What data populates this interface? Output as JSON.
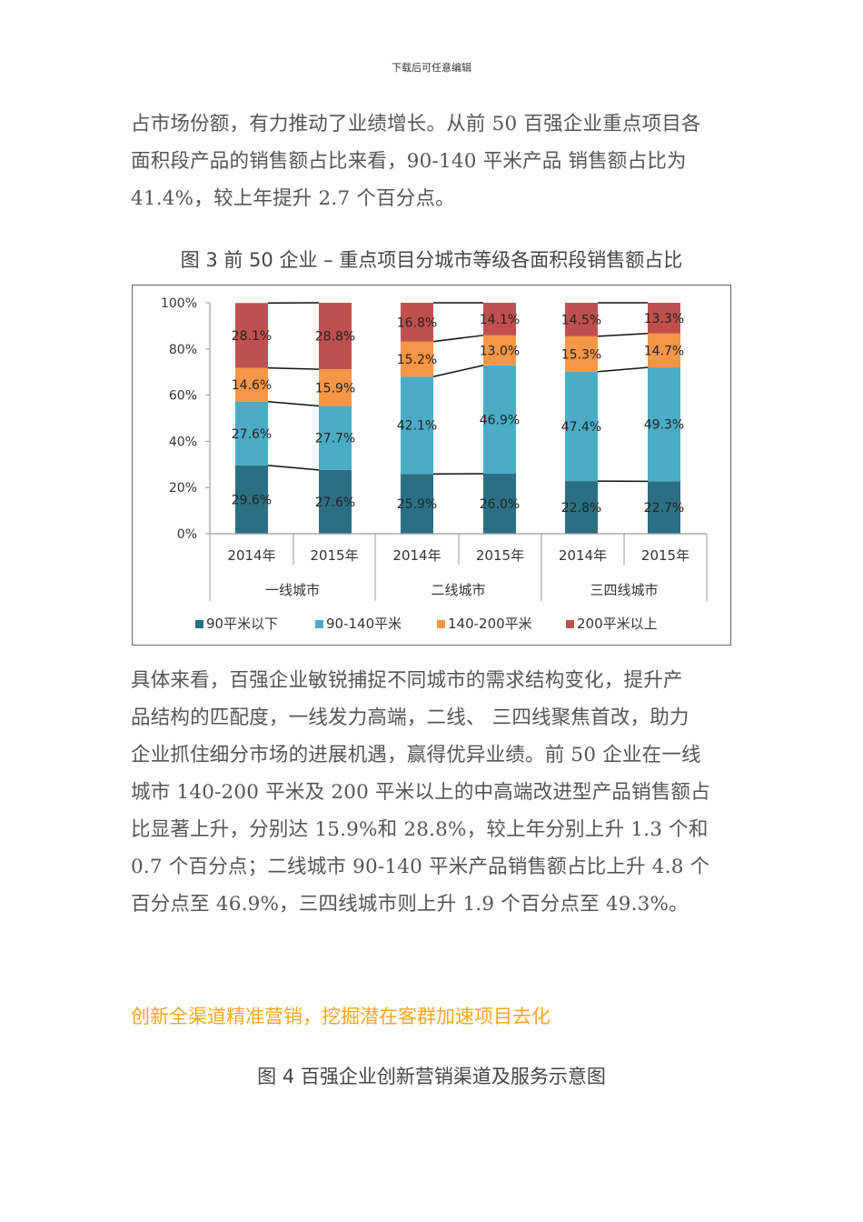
{
  "header": {
    "note": "下载后可任意编辑"
  },
  "paragraph1": {
    "lines": [
      "占市场份额，有力推动了业绩增长。从前 50 百强企业重点项目各",
      "面积段产品的销售额占比来看，90-140 平米产品  销售额占比为",
      "41.4%，较上年提升 2.7 个百分点。"
    ]
  },
  "figure3": {
    "title": "图 3  前 50 企业 – 重点项目分城市等级各面积段销售额占比"
  },
  "chart_data": {
    "type": "bar",
    "stacked": true,
    "percent": true,
    "title": "图3 前50企业 – 重点项目分城市等级各面积段销售额占比",
    "xlabel": "",
    "ylabel": "",
    "ylim": [
      0,
      100
    ],
    "yticks": [
      "0%",
      "20%",
      "40%",
      "60%",
      "80%",
      "100%"
    ],
    "categories": [
      "2014年",
      "2015年",
      "2014年",
      "2015年",
      "2014年",
      "2015年"
    ],
    "groups": [
      {
        "label": "一线城市",
        "categories": [
          "2014年",
          "2015年"
        ]
      },
      {
        "label": "二线城市",
        "categories": [
          "2014年",
          "2015年"
        ]
      },
      {
        "label": "三四线城市",
        "categories": [
          "2014年",
          "2015年"
        ]
      }
    ],
    "series": [
      {
        "name": "90平米以下",
        "color": "#2a6f84",
        "values": [
          29.6,
          27.6,
          25.9,
          26.0,
          22.8,
          22.7
        ]
      },
      {
        "name": "90-140平米",
        "color": "#4bacc6",
        "values": [
          27.6,
          27.7,
          42.1,
          46.9,
          47.4,
          49.3
        ]
      },
      {
        "name": "140-200平米",
        "color": "#f79646",
        "values": [
          14.6,
          15.9,
          15.2,
          13.0,
          15.3,
          14.7
        ]
      },
      {
        "name": "200平米以上",
        "color": "#c0504d",
        "values": [
          28.1,
          28.8,
          16.8,
          14.1,
          14.5,
          13.3
        ]
      }
    ],
    "legend_position": "bottom",
    "grid": false,
    "series_lines": true
  },
  "paragraph2": {
    "lines": [
      "具体来看，百强企业敏锐捕捉不同城市的需求结构变化，提升产",
      "品结构的匹配度，一线发力高端，二线、 三四线聚焦首改，助力",
      "企业抓住细分市场的进展机遇，赢得优异业绩。前 50 企业在一线",
      "城市 140-200 平米及 200 平米以上的中高端改进型产品销售额占",
      "比显著上升，分别达 15.9%和 28.8%，较上年分别上升 1.3 个和",
      "0.7 个百分点；二线城市 90-140 平米产品销售额占比上升 4.8 个",
      "百分点至 46.9%，三四线城市则上升 1.9 个百分点至 49.3%。"
    ]
  },
  "section": {
    "heading": "创新全渠道精准营销，挖掘潜在客群加速项目去化",
    "color": "#f5a623"
  },
  "figure4": {
    "title": "图 4  百强企业创新营销渠道及服务示意图"
  }
}
